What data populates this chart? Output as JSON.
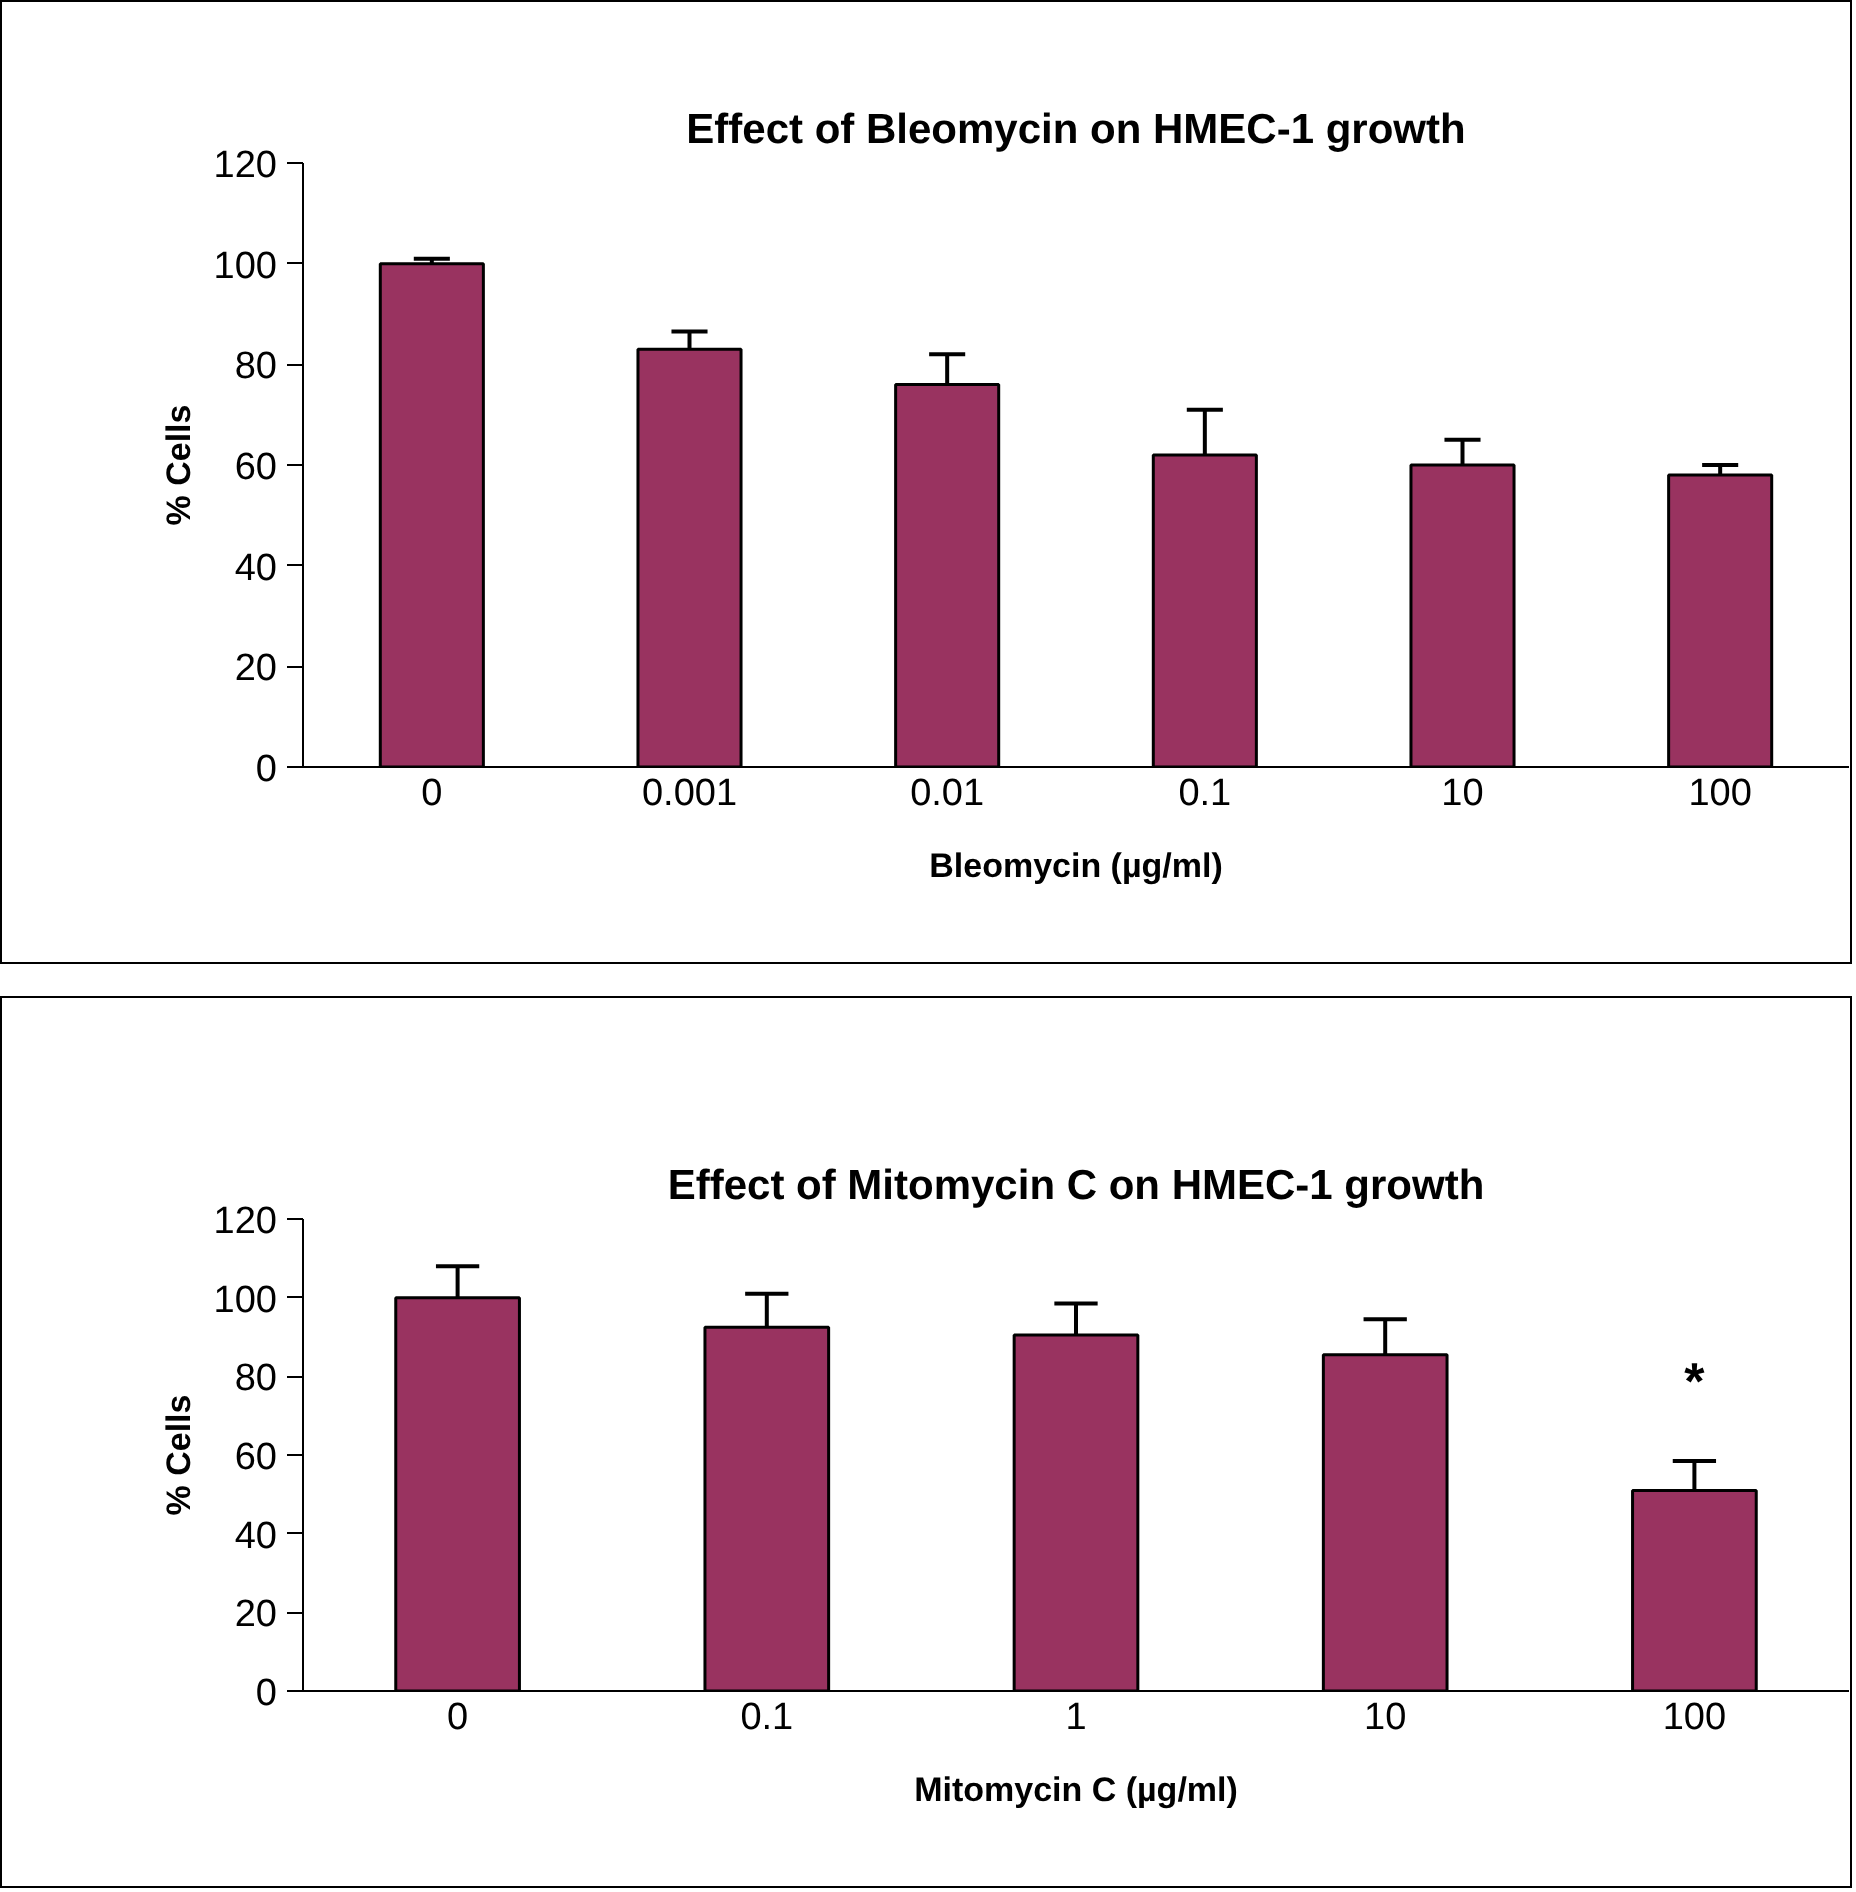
{
  "chart_data": [
    {
      "type": "bar",
      "title": "Effect of Bleomycin on HMEC-1 growth",
      "xlabel": "Bleomycin (µg/ml)",
      "ylabel": "% Cells",
      "categories": [
        "0",
        "0.001",
        "0.01",
        "0.1",
        "10",
        "100"
      ],
      "values": [
        100,
        83,
        76,
        62,
        60,
        58
      ],
      "color": "#993360",
      "errors": [
        [
          100,
          101
        ],
        [
          83,
          86.5
        ],
        [
          76,
          82
        ],
        [
          62,
          71
        ],
        [
          60,
          65
        ],
        [
          58,
          60
        ]
      ],
      "ylim": [
        0,
        120
      ],
      "yticks": [
        0,
        20,
        40,
        60,
        80,
        100,
        120
      ],
      "grid": false,
      "legend": false
    },
    {
      "type": "bar",
      "title": "Effect of Mitomycin C on HMEC-1 growth",
      "xlabel": "Mitomycin C (µg/ml)",
      "ylabel": "% Cells",
      "categories": [
        "0",
        "0.1",
        "1",
        "10",
        "100"
      ],
      "values": [
        100,
        92.5,
        90.5,
        85.5,
        51
      ],
      "color": "#993360",
      "errors": [
        [
          100,
          108
        ],
        [
          92.5,
          101
        ],
        [
          90.5,
          98.5
        ],
        [
          85.5,
          94.5
        ],
        [
          51,
          58.5
        ]
      ],
      "annotations": [
        "*"
      ],
      "ylim": [
        0,
        120
      ],
      "yticks": [
        0,
        20,
        40,
        60,
        80,
        100,
        120
      ],
      "grid": false,
      "legend": false
    }
  ]
}
